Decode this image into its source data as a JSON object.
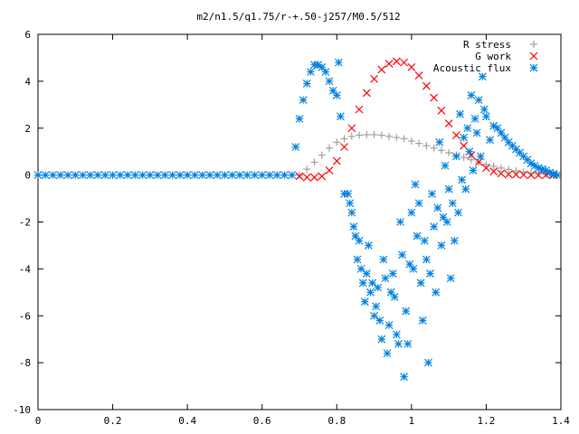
{
  "chart_data": {
    "type": "scatter",
    "title": "m2/n1.5/q1.75/r-+.50-j257/M0.5/512",
    "xlabel": "",
    "ylabel": "",
    "xlim": [
      0,
      1.4
    ],
    "ylim": [
      -10,
      6
    ],
    "grid": false,
    "legend_position": "top-right",
    "x_ticks": [
      0,
      0.2,
      0.4,
      0.6,
      0.8,
      1,
      1.2,
      1.4
    ],
    "x_tick_labels": [
      "0",
      "0.2",
      "0.4",
      "0.6",
      "0.8",
      "1",
      "1.2",
      "1.4"
    ],
    "y_ticks": [
      -10,
      -8,
      -6,
      -4,
      -2,
      0,
      2,
      4,
      6
    ],
    "y_tick_labels": [
      "-10",
      "-8",
      "-6",
      "-4",
      "-2",
      "0",
      "2",
      "4",
      "6"
    ],
    "series": [
      {
        "name": "R stress",
        "marker": "plus",
        "color": "#a0a0a0",
        "x": [
          0.7,
          0.72,
          0.74,
          0.76,
          0.78,
          0.8,
          0.82,
          0.84,
          0.86,
          0.88,
          0.9,
          0.92,
          0.94,
          0.96,
          0.98,
          1.0,
          1.02,
          1.04,
          1.06,
          1.08,
          1.1,
          1.12,
          1.14,
          1.16,
          1.18,
          1.2,
          1.22,
          1.24,
          1.26,
          1.28,
          1.3,
          1.32,
          1.34,
          1.36,
          1.38
        ],
        "y": [
          0.0,
          0.25,
          0.55,
          0.85,
          1.15,
          1.4,
          1.55,
          1.65,
          1.7,
          1.72,
          1.72,
          1.7,
          1.65,
          1.6,
          1.55,
          1.45,
          1.35,
          1.25,
          1.15,
          1.05,
          0.95,
          0.85,
          0.75,
          0.65,
          0.55,
          0.45,
          0.37,
          0.3,
          0.24,
          0.18,
          0.13,
          0.09,
          0.06,
          0.03,
          0.0
        ]
      },
      {
        "name": "G work",
        "marker": "cross",
        "color": "#ff0000",
        "x": [
          0.7,
          0.72,
          0.74,
          0.76,
          0.78,
          0.8,
          0.82,
          0.84,
          0.86,
          0.88,
          0.9,
          0.92,
          0.94,
          0.96,
          0.98,
          1.0,
          1.02,
          1.04,
          1.06,
          1.08,
          1.1,
          1.12,
          1.14,
          1.16,
          1.18,
          1.2,
          1.22,
          1.24,
          1.26,
          1.28,
          1.3,
          1.32,
          1.34,
          1.36,
          1.38
        ],
        "y": [
          -0.05,
          -0.1,
          -0.1,
          -0.05,
          0.2,
          0.6,
          1.2,
          2.0,
          2.8,
          3.5,
          4.1,
          4.5,
          4.75,
          4.85,
          4.8,
          4.6,
          4.25,
          3.8,
          3.3,
          2.75,
          2.2,
          1.7,
          1.25,
          0.85,
          0.55,
          0.3,
          0.15,
          0.07,
          0.03,
          0.02,
          0.01,
          0.0,
          0.0,
          0.0,
          0.0
        ]
      },
      {
        "name": "Acoustic flux",
        "marker": "star",
        "color": "#0080e0",
        "x": [
          0.0,
          0.02,
          0.04,
          0.06,
          0.08,
          0.1,
          0.12,
          0.14,
          0.16,
          0.18,
          0.2,
          0.22,
          0.24,
          0.26,
          0.28,
          0.3,
          0.32,
          0.34,
          0.36,
          0.38,
          0.4,
          0.42,
          0.44,
          0.46,
          0.48,
          0.5,
          0.52,
          0.54,
          0.56,
          0.58,
          0.6,
          0.62,
          0.64,
          0.66,
          0.68,
          0.69,
          0.7,
          0.71,
          0.72,
          0.73,
          0.74,
          0.75,
          0.76,
          0.77,
          0.78,
          0.79,
          0.8,
          0.805,
          0.81,
          0.82,
          0.83,
          0.835,
          0.84,
          0.845,
          0.85,
          0.855,
          0.86,
          0.865,
          0.87,
          0.875,
          0.88,
          0.885,
          0.89,
          0.895,
          0.9,
          0.905,
          0.91,
          0.915,
          0.92,
          0.925,
          0.93,
          0.935,
          0.94,
          0.945,
          0.95,
          0.955,
          0.96,
          0.965,
          0.97,
          0.975,
          0.98,
          0.985,
          0.99,
          0.995,
          1.0,
          1.005,
          1.01,
          1.015,
          1.02,
          1.025,
          1.03,
          1.035,
          1.04,
          1.045,
          1.05,
          1.055,
          1.06,
          1.065,
          1.07,
          1.075,
          1.08,
          1.085,
          1.09,
          1.095,
          1.1,
          1.105,
          1.11,
          1.115,
          1.12,
          1.125,
          1.13,
          1.135,
          1.14,
          1.145,
          1.15,
          1.155,
          1.16,
          1.165,
          1.17,
          1.175,
          1.18,
          1.185,
          1.19,
          1.195,
          1.2,
          1.21,
          1.22,
          1.23,
          1.24,
          1.25,
          1.26,
          1.27,
          1.28,
          1.29,
          1.3,
          1.31,
          1.32,
          1.33,
          1.34,
          1.35,
          1.36,
          1.37,
          1.38,
          1.39
        ],
        "y": [
          0,
          0,
          0,
          0,
          0,
          0,
          0,
          0,
          0,
          0,
          0,
          0,
          0,
          0,
          0,
          0,
          0,
          0,
          0,
          0,
          0,
          0,
          0,
          0,
          0,
          0,
          0,
          0,
          0,
          0,
          0,
          0,
          0,
          0,
          0,
          1.2,
          2.4,
          3.2,
          3.9,
          4.4,
          4.7,
          4.7,
          4.6,
          4.4,
          4.0,
          3.6,
          3.4,
          4.8,
          2.5,
          -0.8,
          -0.8,
          -1.2,
          -1.6,
          -2.2,
          -2.6,
          -3.6,
          -2.8,
          -4.0,
          -4.6,
          -5.4,
          -4.2,
          -3.0,
          -5.0,
          -4.6,
          -6.0,
          -5.6,
          -4.8,
          -6.2,
          -7.0,
          -3.6,
          -4.4,
          -7.6,
          -6.4,
          -5.0,
          -4.2,
          -5.2,
          -6.8,
          -7.2,
          -2.0,
          -3.4,
          -8.6,
          -5.8,
          -7.2,
          -3.8,
          -1.6,
          -4.0,
          -0.4,
          -2.6,
          -1.2,
          -4.6,
          -6.2,
          -2.8,
          -3.6,
          -8.0,
          -4.2,
          -0.8,
          -2.2,
          -5.0,
          -1.4,
          1.4,
          -3.0,
          -1.8,
          0.4,
          -2.0,
          -0.6,
          -4.4,
          -1.2,
          -2.8,
          0.8,
          -1.6,
          2.6,
          -0.2,
          1.6,
          -0.6,
          2.0,
          1.0,
          3.4,
          0.2,
          2.4,
          1.8,
          3.2,
          0.8,
          4.2,
          2.8,
          2.5,
          1.5,
          2.1,
          2.0,
          1.8,
          1.6,
          1.4,
          1.25,
          1.1,
          0.95,
          0.8,
          0.65,
          0.5,
          0.4,
          0.3,
          0.25,
          0.2,
          0.1,
          0.05,
          0.0
        ]
      }
    ]
  }
}
